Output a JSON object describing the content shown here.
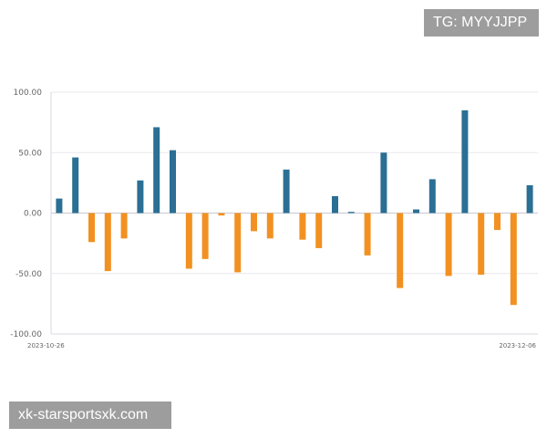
{
  "chart_data": {
    "type": "bar",
    "x_start_label": "2023-10-26",
    "x_end_label": "2023-12-06",
    "ylim": [
      -100,
      100
    ],
    "yticks": [
      "100.00",
      "50.00",
      "0.00",
      "-50.00",
      "-100.00"
    ],
    "values": [
      12,
      46,
      -24,
      -48,
      -21,
      27,
      71,
      52,
      -46,
      -38,
      -2,
      -49,
      -15,
      -21,
      36,
      -22,
      -29,
      14,
      1,
      -35,
      50,
      -62,
      3,
      28,
      -52,
      85,
      -51,
      -14,
      -76,
      23
    ],
    "colors": {
      "positive": "#2b6f94",
      "negative": "#f29121",
      "grid": "#e8e8ee",
      "axis": "#d8d8e0"
    },
    "grid": true,
    "legend": "none"
  },
  "overlays": {
    "watermark_top": "TG: MYYJJPP",
    "watermark_bottom": "xk-starsportsxk.com"
  }
}
